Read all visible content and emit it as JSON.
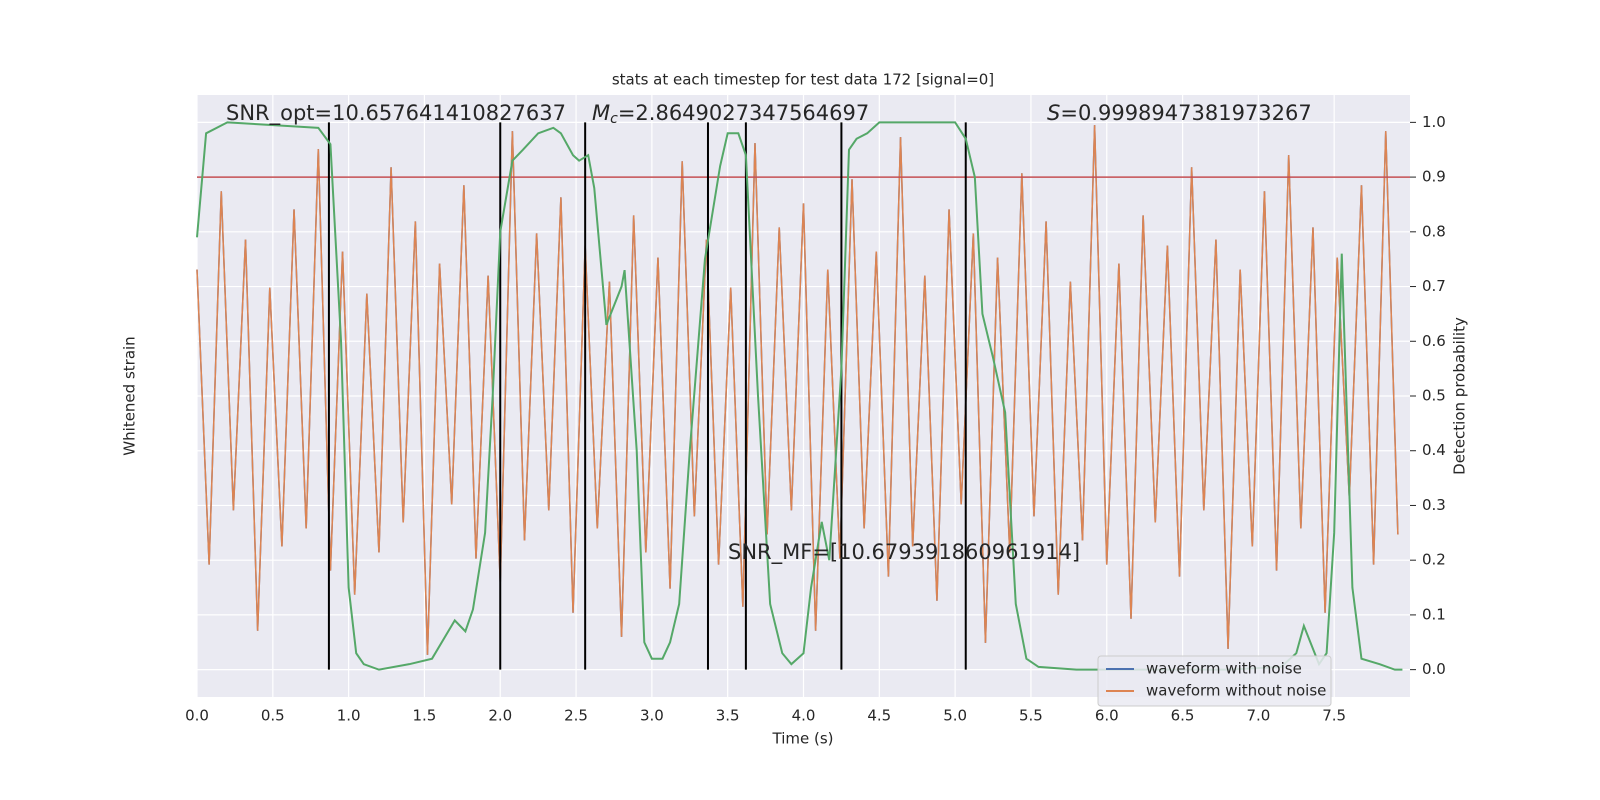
{
  "chart_data": {
    "type": "line",
    "title": "stats at each timestep for test data 172 [signal=0]",
    "xlabel": "Time (s)",
    "ylabel": "Whitened strain",
    "y2label": "Detection probability",
    "annotations": {
      "snr_opt": "SNR_opt=10.657641410827637",
      "mc_symbol": "M",
      "mc_sub": "c",
      "mc_value": "=2.8649027347564697",
      "s_symbol": "S",
      "s_value": "=0.9998947381973267",
      "snr_mf": "SNR_MF=[10.679391860961914]"
    },
    "xlim": [
      0,
      8
    ],
    "xticks": [
      {
        "value": 0,
        "label": "0.0"
      },
      0.5,
      {
        "value": 1,
        "label": "1.0"
      },
      1.5,
      {
        "value": 2,
        "label": "2.0"
      },
      2.5,
      {
        "value": 3,
        "label": "3.0"
      },
      3.5,
      {
        "value": 4,
        "label": "4.0"
      },
      4.5,
      {
        "value": 5,
        "label": "5.0"
      },
      5.5,
      {
        "value": 6,
        "label": "6.0"
      },
      6.5,
      {
        "value": 7,
        "label": "7.0"
      },
      7.5
    ],
    "ylim": [
      -5,
      5
    ],
    "y2lim": [
      -0.05,
      1.05
    ],
    "y2ticks": [
      {
        "value": 0,
        "label": "0.0"
      },
      0.1,
      0.2,
      0.3,
      0.4,
      0.5,
      0.6,
      0.7,
      0.8,
      0.9,
      {
        "value": 1,
        "label": "1.0"
      }
    ],
    "grid": true,
    "legend": "lower right",
    "x": [
      0,
      0.08,
      0.16,
      0.24,
      0.32,
      0.4,
      0.48,
      0.56,
      0.64,
      0.72,
      0.8,
      0.88,
      0.96,
      1.04,
      1.12,
      1.2,
      1.28,
      1.36,
      1.44,
      1.52,
      1.6,
      1.68,
      1.76,
      1.84,
      1.92,
      2,
      2.08,
      2.16,
      2.24,
      2.32,
      2.4,
      2.48,
      2.56,
      2.64,
      2.72,
      2.8,
      2.88,
      2.96,
      3.04,
      3.12,
      3.2,
      3.28,
      3.36,
      3.44,
      3.52,
      3.6,
      3.68,
      3.76,
      3.84,
      3.92,
      4,
      4.08,
      4.16,
      4.24,
      4.32,
      4.4,
      4.48,
      4.56,
      4.64,
      4.72,
      4.8,
      4.88,
      4.96,
      5.04,
      5.12,
      5.2,
      5.28,
      5.36,
      5.44,
      5.52,
      5.6,
      5.68,
      5.76,
      5.84,
      5.92,
      6,
      6.08,
      6.16,
      6.24,
      6.32,
      6.4,
      6.48,
      6.56,
      6.64,
      6.72,
      6.8,
      6.88,
      6.96,
      7.04,
      7.12,
      7.2,
      7.28,
      7.36,
      7.44,
      7.52,
      7.6,
      7.68,
      7.76,
      7.84,
      7.92
    ],
    "series": [
      {
        "name": "waveform with noise",
        "color": "#4c72b0",
        "values": [
          2.1,
          -2.8,
          3.4,
          -1.9,
          2.6,
          -3.9,
          1.8,
          -2.5,
          3.1,
          -2.2,
          4.1,
          -2.9,
          2.4,
          -3.3,
          1.7,
          -2.6,
          3.8,
          -2.1,
          2.9,
          -4.3,
          2.2,
          -1.8,
          3.5,
          -2.7,
          2.0,
          -3.1,
          4.4,
          -2.4,
          2.7,
          -1.9,
          3.3,
          -3.6,
          2.5,
          -2.2,
          1.9,
          -4.0,
          3.0,
          -2.6,
          2.3,
          -3.2,
          3.9,
          -2.0,
          2.6,
          -2.8,
          1.8,
          -3.5,
          4.2,
          -2.3,
          2.8,
          -1.9,
          3.2,
          -3.9,
          2.1,
          -2.7,
          3.6,
          -2.2,
          2.4,
          -3.0,
          4.3,
          -2.5,
          2.0,
          -3.4,
          3.1,
          -1.8,
          2.7,
          -4.1,
          2.3,
          -2.6,
          3.7,
          -2.0,
          2.9,
          -3.3,
          1.9,
          -2.4,
          4.5,
          -2.8,
          2.2,
          -3.7,
          3.0,
          -2.1,
          2.5,
          -3.0,
          3.8,
          -1.9,
          2.6,
          -4.2,
          2.1,
          -2.5,
          3.4,
          -2.9,
          4.0,
          -2.2,
          2.8,
          -3.6,
          2.3,
          -1.7,
          3.5,
          -2.8,
          4.4,
          -2.3
        ]
      },
      {
        "name": "waveform without noise",
        "color": "#dd8452",
        "values": [
          2.1,
          -2.8,
          3.4,
          -1.9,
          2.6,
          -3.9,
          1.8,
          -2.5,
          3.1,
          -2.2,
          4.1,
          -2.9,
          2.4,
          -3.3,
          1.7,
          -2.6,
          3.8,
          -2.1,
          2.9,
          -4.3,
          2.2,
          -1.8,
          3.5,
          -2.7,
          2.0,
          -3.1,
          4.4,
          -2.4,
          2.7,
          -1.9,
          3.3,
          -3.6,
          2.5,
          -2.2,
          1.9,
          -4.0,
          3.0,
          -2.6,
          2.3,
          -3.2,
          3.9,
          -2.0,
          2.6,
          -2.8,
          1.8,
          -3.5,
          4.2,
          -2.3,
          2.8,
          -1.9,
          3.2,
          -3.9,
          2.1,
          -2.7,
          3.6,
          -2.2,
          2.4,
          -3.0,
          4.3,
          -2.5,
          2.0,
          -3.4,
          3.1,
          -1.8,
          2.7,
          -4.1,
          2.3,
          -2.6,
          3.7,
          -2.0,
          2.9,
          -3.3,
          1.9,
          -2.4,
          4.5,
          -2.8,
          2.2,
          -3.7,
          3.0,
          -2.1,
          2.5,
          -3.0,
          3.8,
          -1.9,
          2.6,
          -4.2,
          2.1,
          -2.5,
          3.4,
          -2.9,
          4.0,
          -2.2,
          2.8,
          -3.6,
          2.3,
          -1.7,
          3.5,
          -2.8,
          4.4,
          -2.3
        ]
      }
    ],
    "probability": {
      "color": "#55a868",
      "axis": "y2",
      "x": [
        0,
        0.06,
        0.2,
        0.8,
        0.88,
        0.95,
        1,
        1.05,
        1.1,
        1.2,
        1.4,
        1.55,
        1.7,
        1.77,
        1.82,
        1.9,
        1.95,
        2,
        2.08,
        2.15,
        2.25,
        2.35,
        2.4,
        2.48,
        2.52,
        2.58,
        2.62,
        2.7,
        2.8,
        2.82,
        2.9,
        2.95,
        3,
        3.07,
        3.12,
        3.18,
        3.25,
        3.35,
        3.45,
        3.5,
        3.57,
        3.62,
        3.7,
        3.78,
        3.86,
        3.92,
        4,
        4.05,
        4.12,
        4.17,
        4.25,
        4.3,
        4.35,
        4.42,
        4.5,
        5,
        5.07,
        5.13,
        5.18,
        5.25,
        5.33,
        5.4,
        5.47,
        5.55,
        5.8,
        6.8,
        7.15,
        7.25,
        7.3,
        7.4,
        7.45,
        7.5,
        7.55,
        7.62,
        7.68,
        7.8,
        7.9,
        7.95
      ],
      "values": [
        0.79,
        0.98,
        1.0,
        0.99,
        0.96,
        0.6,
        0.15,
        0.03,
        0.01,
        0.0,
        0.01,
        0.02,
        0.09,
        0.07,
        0.11,
        0.25,
        0.5,
        0.8,
        0.93,
        0.95,
        0.98,
        0.99,
        0.98,
        0.94,
        0.93,
        0.94,
        0.88,
        0.63,
        0.7,
        0.73,
        0.4,
        0.05,
        0.02,
        0.02,
        0.05,
        0.12,
        0.4,
        0.75,
        0.92,
        0.98,
        0.98,
        0.94,
        0.5,
        0.12,
        0.03,
        0.01,
        0.03,
        0.15,
        0.27,
        0.2,
        0.55,
        0.95,
        0.97,
        0.98,
        1.0,
        1.0,
        0.97,
        0.9,
        0.65,
        0.57,
        0.47,
        0.12,
        0.02,
        0.005,
        0.0,
        0.0,
        0.005,
        0.03,
        0.08,
        0.01,
        0.03,
        0.25,
        0.76,
        0.15,
        0.02,
        0.01,
        0.0,
        0.0
      ]
    },
    "threshold": {
      "value": 0.9,
      "color": "#c44e52"
    },
    "markers": [
      0.87,
      2.0,
      2.56,
      3.37,
      3.62,
      4.25,
      5.07
    ],
    "marker_range": [
      0,
      1
    ]
  }
}
